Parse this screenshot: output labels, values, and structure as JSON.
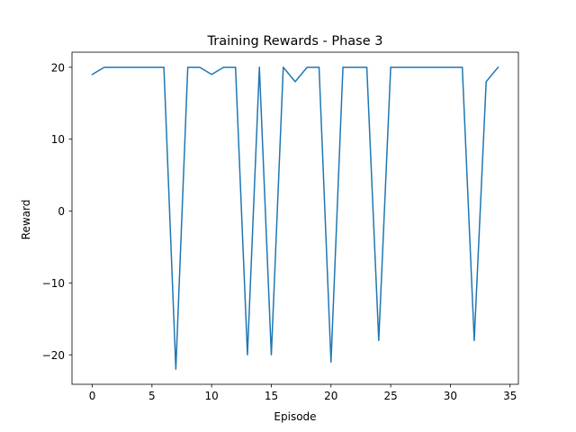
{
  "chart_data": {
    "type": "line",
    "title": "Training Rewards - Phase 3",
    "xlabel": "Episode",
    "ylabel": "Reward",
    "xlim": [
      -1.7,
      35.7
    ],
    "ylim": [
      -24.1,
      22.1
    ],
    "xticks": [
      0,
      5,
      10,
      15,
      20,
      25,
      30,
      35
    ],
    "yticks": [
      -20,
      -10,
      0,
      10,
      20
    ],
    "ytick_labels": [
      "−20",
      "−10",
      "0",
      "10",
      "20"
    ],
    "grid": false,
    "series": [
      {
        "color": "#1f77b4",
        "x": [
          0,
          1,
          2,
          3,
          4,
          5,
          6,
          7,
          8,
          9,
          10,
          11,
          12,
          13,
          14,
          15,
          16,
          17,
          18,
          19,
          20,
          21,
          22,
          23,
          24,
          25,
          26,
          27,
          28,
          29,
          30,
          31,
          32,
          33,
          34
        ],
        "values": [
          19,
          20,
          20,
          20,
          20,
          20,
          20,
          -22,
          20,
          20,
          19,
          20,
          20,
          -20,
          20,
          -20,
          20,
          18,
          20,
          20,
          -21,
          20,
          20,
          20,
          -18,
          20,
          20,
          20,
          20,
          20,
          20,
          20,
          -18,
          18,
          20
        ]
      }
    ]
  }
}
